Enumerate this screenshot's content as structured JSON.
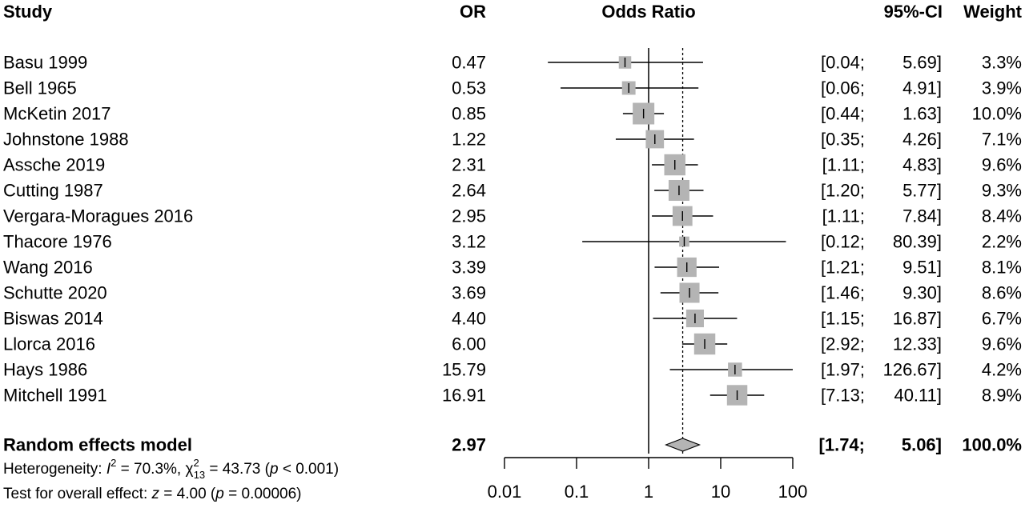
{
  "chart_data": {
    "type": "forest",
    "headers": {
      "study": "Study",
      "or": "OR",
      "plot": "Odds Ratio",
      "ci": "95%-CI",
      "weight": "Weight"
    },
    "x_scale": "log",
    "xlim": [
      0.01,
      100
    ],
    "ticks": [
      {
        "value": 0.01,
        "label": "0.01"
      },
      {
        "value": 0.1,
        "label": "0.1"
      },
      {
        "value": 1,
        "label": "1"
      },
      {
        "value": 10,
        "label": "10"
      },
      {
        "value": 100,
        "label": "100"
      }
    ],
    "null_line": 1,
    "summary_line": 2.97,
    "studies": [
      {
        "name": "Basu 1999",
        "or": 0.47,
        "or_label": "0.47",
        "lower": 0.04,
        "upper": 5.69,
        "ci_lower": "[0.04;",
        "ci_upper": "5.69]",
        "weight": 3.3,
        "weight_label": "3.3%"
      },
      {
        "name": "Bell 1965",
        "or": 0.53,
        "or_label": "0.53",
        "lower": 0.06,
        "upper": 4.91,
        "ci_lower": "[0.06;",
        "ci_upper": "4.91]",
        "weight": 3.9,
        "weight_label": "3.9%"
      },
      {
        "name": "McKetin 2017",
        "or": 0.85,
        "or_label": "0.85",
        "lower": 0.44,
        "upper": 1.63,
        "ci_lower": "[0.44;",
        "ci_upper": "1.63]",
        "weight": 10.0,
        "weight_label": "10.0%"
      },
      {
        "name": "Johnstone 1988",
        "or": 1.22,
        "or_label": "1.22",
        "lower": 0.35,
        "upper": 4.26,
        "ci_lower": "[0.35;",
        "ci_upper": "4.26]",
        "weight": 7.1,
        "weight_label": "7.1%"
      },
      {
        "name": "Assche 2019",
        "or": 2.31,
        "or_label": "2.31",
        "lower": 1.11,
        "upper": 4.83,
        "ci_lower": "[1.11;",
        "ci_upper": "4.83]",
        "weight": 9.6,
        "weight_label": "9.6%"
      },
      {
        "name": "Cutting 1987",
        "or": 2.64,
        "or_label": "2.64",
        "lower": 1.2,
        "upper": 5.77,
        "ci_lower": "[1.20;",
        "ci_upper": "5.77]",
        "weight": 9.3,
        "weight_label": "9.3%"
      },
      {
        "name": "Vergara-Moragues 2016",
        "or": 2.95,
        "or_label": "2.95",
        "lower": 1.11,
        "upper": 7.84,
        "ci_lower": "[1.11;",
        "ci_upper": "7.84]",
        "weight": 8.4,
        "weight_label": "8.4%"
      },
      {
        "name": "Thacore 1976",
        "or": 3.12,
        "or_label": "3.12",
        "lower": 0.12,
        "upper": 80.39,
        "ci_lower": "[0.12;",
        "ci_upper": "80.39]",
        "weight": 2.2,
        "weight_label": "2.2%"
      },
      {
        "name": "Wang 2016",
        "or": 3.39,
        "or_label": "3.39",
        "lower": 1.21,
        "upper": 9.51,
        "ci_lower": "[1.21;",
        "ci_upper": "9.51]",
        "weight": 8.1,
        "weight_label": "8.1%"
      },
      {
        "name": "Schutte 2020",
        "or": 3.69,
        "or_label": "3.69",
        "lower": 1.46,
        "upper": 9.3,
        "ci_lower": "[1.46;",
        "ci_upper": "9.30]",
        "weight": 8.6,
        "weight_label": "8.6%"
      },
      {
        "name": "Biswas 2014",
        "or": 4.4,
        "or_label": "4.40",
        "lower": 1.15,
        "upper": 16.87,
        "ci_lower": "[1.15;",
        "ci_upper": "16.87]",
        "weight": 6.7,
        "weight_label": "6.7%"
      },
      {
        "name": "Llorca 2016",
        "or": 6.0,
        "or_label": "6.00",
        "lower": 2.92,
        "upper": 12.33,
        "ci_lower": "[2.92;",
        "ci_upper": "12.33]",
        "weight": 9.6,
        "weight_label": "9.6%"
      },
      {
        "name": "Hays 1986",
        "or": 15.79,
        "or_label": "15.79",
        "lower": 1.97,
        "upper": 126.67,
        "ci_lower": "[1.97;",
        "ci_upper": "126.67]",
        "weight": 4.2,
        "weight_label": "4.2%"
      },
      {
        "name": "Mitchell 1991",
        "or": 16.91,
        "or_label": "16.91",
        "lower": 7.13,
        "upper": 40.11,
        "ci_lower": "[7.13;",
        "ci_upper": "40.11]",
        "weight": 8.9,
        "weight_label": "8.9%"
      }
    ],
    "summary": {
      "name": "Random effects model",
      "or": 2.97,
      "or_label": "2.97",
      "lower": 1.74,
      "upper": 5.06,
      "ci_lower": "[1.74;",
      "ci_upper": "5.06]",
      "weight_label": "100.0%"
    },
    "heterogeneity": {
      "prefix": "Heterogeneity: ",
      "i2_symbol": "I",
      "i2_sup": "2",
      "i2_value": " = 70.3%, ",
      "chi_symbol": "χ",
      "chi_sup": "2",
      "chi_sub": "13",
      "chi_value": " = 43.73 (",
      "p_symbol": "p",
      "p_value": " < 0.001)"
    },
    "overall": {
      "prefix": "Test for overall effect: ",
      "z_symbol": "z",
      "z_value": " = 4.00 (",
      "p_symbol": "p",
      "p_value": " = 0.00006)"
    },
    "colors": {
      "box": "#b4b4b4",
      "diamond": "#b4b4b4",
      "line": "#000000"
    }
  }
}
